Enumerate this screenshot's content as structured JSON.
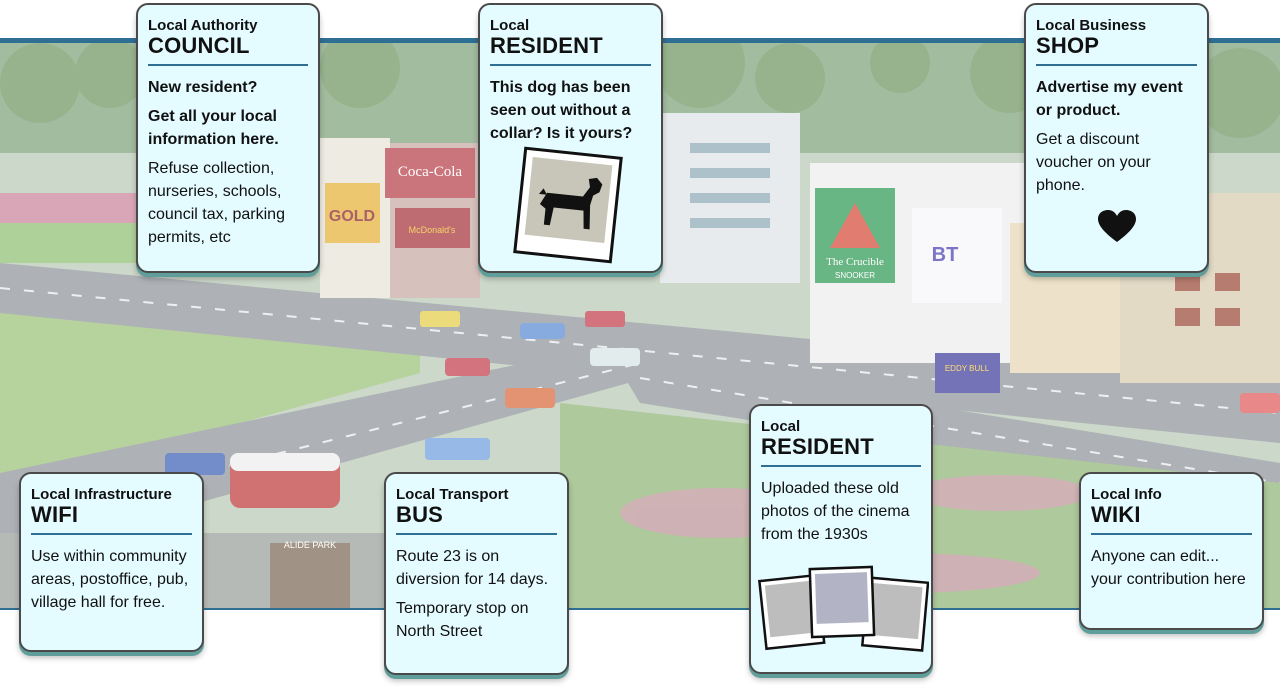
{
  "cards": {
    "council": {
      "kicker": "Local Authority",
      "title": "COUNCIL",
      "lines": [
        "New resident?",
        "Get all your local information here.",
        "Refuse collection, nurseries, schools, council tax, parking permits, etc"
      ]
    },
    "resident_dog": {
      "kicker": "Local",
      "title": "RESIDENT",
      "lines": [
        "This dog has been seen out without a collar? Is it yours?"
      ],
      "icon": "dog-photo-icon"
    },
    "shop": {
      "kicker": "Local Business",
      "title": "SHOP",
      "lines": [
        "Advertise my event or product.",
        "Get a discount voucher on your phone."
      ],
      "icon": "heart-icon"
    },
    "wifi": {
      "kicker": "Local Infrastructure",
      "title": "WIFI",
      "lines": [
        "Use within community areas, postoffice, pub, village hall for free."
      ]
    },
    "bus": {
      "kicker": "Local Transport",
      "title": "BUS",
      "lines": [
        "Route 23 is on diversion for 14 days.",
        "Temporary stop on North Street"
      ]
    },
    "resident_cinema": {
      "kicker": "Local",
      "title": "RESIDENT",
      "lines": [
        "Uploaded these old photos of the cinema from the 1930s"
      ],
      "icon": "photos-stack-icon"
    },
    "wiki": {
      "kicker": "Local Info",
      "title": "WIKI",
      "lines": [
        "Anyone can edit... your contribution here"
      ]
    }
  },
  "scene_signs": {
    "coca_cola": "Coca-Cola",
    "gold": "GOLD",
    "mcdonalds": "McDonald's",
    "crucible": "The Crucible",
    "snooker": "SNOOKER",
    "bt": "BT",
    "eddy": "EDDY BULL",
    "park": "ALIDE PARK"
  },
  "colors": {
    "card_bg": "#e4fbff",
    "card_border": "#4a4a4a",
    "rule": "#2f6f94",
    "shadow": "#5f9e9a"
  }
}
